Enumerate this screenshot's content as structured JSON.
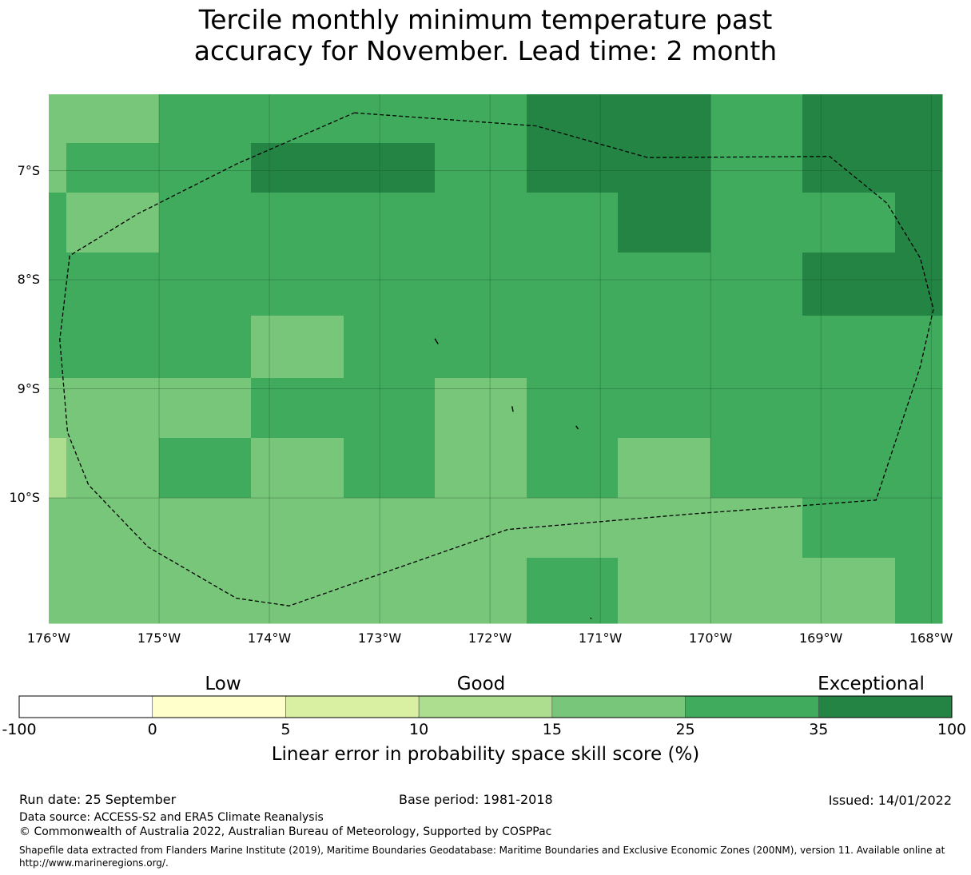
{
  "title_line1": "Tercile monthly minimum temperature past",
  "title_line2": "accuracy for November. Lead time: 2 month",
  "colors": {
    "c15_25": "#78c679",
    "c25_35": "#41ab5d",
    "c35_100": "#238443",
    "c10_15": "#addd8e"
  },
  "map": {
    "lon_range": [
      -176.0,
      -167.9
    ],
    "lat_range": [
      -11.15,
      -6.3
    ],
    "cells": [
      {
        "x0": -176.0,
        "x1": -175.0,
        "y0": -6.3,
        "y1": -6.75,
        "c": "c15_25"
      },
      {
        "x0": -175.0,
        "x1": -174.0,
        "y0": -6.3,
        "y1": -6.75,
        "c": "c25_35"
      },
      {
        "x0": -174.0,
        "x1": -172.0,
        "y0": -6.3,
        "y1": -6.75,
        "c": "c25_35"
      },
      {
        "x0": -172.0,
        "x1": -171.67,
        "y0": -6.3,
        "y1": -6.75,
        "c": "c25_35"
      },
      {
        "x0": -171.67,
        "x1": -170.0,
        "y0": -6.3,
        "y1": -6.75,
        "c": "c35_100"
      },
      {
        "x0": -170.0,
        "x1": -169.17,
        "y0": -6.3,
        "y1": -6.75,
        "c": "c25_35"
      },
      {
        "x0": -169.17,
        "x1": -167.9,
        "y0": -6.3,
        "y1": -6.75,
        "c": "c35_100"
      },
      {
        "x0": -176.0,
        "x1": -175.84,
        "y0": -6.75,
        "y1": -7.2,
        "c": "c15_25"
      },
      {
        "x0": -175.84,
        "x1": -174.17,
        "y0": -6.75,
        "y1": -7.2,
        "c": "c25_35"
      },
      {
        "x0": -174.17,
        "x1": -172.5,
        "y0": -6.75,
        "y1": -7.2,
        "c": "c35_100"
      },
      {
        "x0": -172.5,
        "x1": -171.67,
        "y0": -6.75,
        "y1": -7.2,
        "c": "c25_35"
      },
      {
        "x0": -171.67,
        "x1": -170.0,
        "y0": -6.75,
        "y1": -7.2,
        "c": "c35_100"
      },
      {
        "x0": -170.0,
        "x1": -169.17,
        "y0": -6.75,
        "y1": -7.2,
        "c": "c25_35"
      },
      {
        "x0": -169.17,
        "x1": -167.9,
        "y0": -6.75,
        "y1": -7.2,
        "c": "c35_100"
      },
      {
        "x0": -176.0,
        "x1": -175.84,
        "y0": -7.2,
        "y1": -7.75,
        "c": "c25_35"
      },
      {
        "x0": -175.84,
        "x1": -175.0,
        "y0": -7.2,
        "y1": -7.75,
        "c": "c15_25"
      },
      {
        "x0": -175.0,
        "x1": -170.84,
        "y0": -7.2,
        "y1": -7.75,
        "c": "c25_35"
      },
      {
        "x0": -170.84,
        "x1": -170.0,
        "y0": -7.2,
        "y1": -7.75,
        "c": "c35_100"
      },
      {
        "x0": -170.0,
        "x1": -168.33,
        "y0": -7.2,
        "y1": -7.75,
        "c": "c25_35"
      },
      {
        "x0": -168.33,
        "x1": -167.9,
        "y0": -7.2,
        "y1": -7.75,
        "c": "c35_100"
      },
      {
        "x0": -176.0,
        "x1": -169.17,
        "y0": -7.75,
        "y1": -8.33,
        "c": "c25_35"
      },
      {
        "x0": -169.17,
        "x1": -167.9,
        "y0": -7.75,
        "y1": -8.33,
        "c": "c35_100"
      },
      {
        "x0": -176.0,
        "x1": -174.17,
        "y0": -8.33,
        "y1": -8.9,
        "c": "c25_35"
      },
      {
        "x0": -174.17,
        "x1": -173.33,
        "y0": -8.33,
        "y1": -8.9,
        "c": "c15_25"
      },
      {
        "x0": -173.33,
        "x1": -167.9,
        "y0": -8.33,
        "y1": -8.9,
        "c": "c25_35"
      },
      {
        "x0": -176.0,
        "x1": -174.17,
        "y0": -8.9,
        "y1": -9.45,
        "c": "c15_25"
      },
      {
        "x0": -174.17,
        "x1": -172.5,
        "y0": -8.9,
        "y1": -9.45,
        "c": "c25_35"
      },
      {
        "x0": -172.5,
        "x1": -171.67,
        "y0": -8.9,
        "y1": -9.45,
        "c": "c15_25"
      },
      {
        "x0": -171.67,
        "x1": -167.9,
        "y0": -8.9,
        "y1": -9.45,
        "c": "c25_35"
      },
      {
        "x0": -176.0,
        "x1": -175.84,
        "y0": -9.45,
        "y1": -10.0,
        "c": "c10_15"
      },
      {
        "x0": -175.84,
        "x1": -175.0,
        "y0": -9.45,
        "y1": -10.0,
        "c": "c15_25"
      },
      {
        "x0": -175.0,
        "x1": -174.17,
        "y0": -9.45,
        "y1": -10.0,
        "c": "c25_35"
      },
      {
        "x0": -174.17,
        "x1": -173.33,
        "y0": -9.45,
        "y1": -10.0,
        "c": "c15_25"
      },
      {
        "x0": -173.33,
        "x1": -172.5,
        "y0": -9.45,
        "y1": -10.0,
        "c": "c25_35"
      },
      {
        "x0": -172.5,
        "x1": -171.67,
        "y0": -9.45,
        "y1": -10.0,
        "c": "c15_25"
      },
      {
        "x0": -171.67,
        "x1": -170.84,
        "y0": -9.45,
        "y1": -10.0,
        "c": "c25_35"
      },
      {
        "x0": -170.84,
        "x1": -170.0,
        "y0": -9.45,
        "y1": -10.0,
        "c": "c15_25"
      },
      {
        "x0": -170.0,
        "x1": -167.9,
        "y0": -9.45,
        "y1": -10.0,
        "c": "c25_35"
      },
      {
        "x0": -176.0,
        "x1": -169.17,
        "y0": -10.0,
        "y1": -10.55,
        "c": "c15_25"
      },
      {
        "x0": -169.17,
        "x1": -167.9,
        "y0": -10.0,
        "y1": -10.55,
        "c": "c25_35"
      },
      {
        "x0": -176.0,
        "x1": -171.67,
        "y0": -10.55,
        "y1": -11.15,
        "c": "c15_25"
      },
      {
        "x0": -171.67,
        "x1": -170.84,
        "y0": -10.55,
        "y1": -11.15,
        "c": "c25_35"
      },
      {
        "x0": -170.84,
        "x1": -168.33,
        "y0": -10.55,
        "y1": -11.15,
        "c": "c15_25"
      },
      {
        "x0": -168.33,
        "x1": -167.9,
        "y0": -10.55,
        "y1": -11.15,
        "c": "c25_35"
      }
    ],
    "eez_boundary": [
      [
        -173.23,
        -6.47
      ],
      [
        -171.58,
        -6.59
      ],
      [
        -170.57,
        -6.88
      ],
      [
        -168.92,
        -6.87
      ],
      [
        -168.4,
        -7.3
      ],
      [
        -168.1,
        -7.8
      ],
      [
        -167.98,
        -8.27
      ],
      [
        -168.1,
        -8.8
      ],
      [
        -168.5,
        -10.02
      ],
      [
        -170.2,
        -10.15
      ],
      [
        -171.84,
        -10.29
      ],
      [
        -173.82,
        -10.99
      ],
      [
        -174.3,
        -10.92
      ],
      [
        -175.1,
        -10.45
      ],
      [
        -175.64,
        -9.88
      ],
      [
        -175.83,
        -9.4
      ],
      [
        -175.9,
        -8.55
      ],
      [
        -175.81,
        -7.78
      ],
      [
        -175.2,
        -7.4
      ],
      [
        -174.3,
        -6.94
      ],
      [
        -173.23,
        -6.47
      ]
    ],
    "islands": [
      [
        [
          -172.5,
          -8.54
        ],
        [
          -172.47,
          -8.59
        ]
      ],
      [
        [
          -171.8,
          -9.16
        ],
        [
          -171.79,
          -9.21
        ]
      ],
      [
        [
          -171.22,
          -9.34
        ],
        [
          -171.2,
          -9.37
        ]
      ],
      [
        [
          -171.09,
          -11.1
        ],
        [
          -171.08,
          -11.11
        ]
      ]
    ],
    "lat_ticks": [
      {
        "v": -7,
        "label": "7°S"
      },
      {
        "v": -8,
        "label": "8°S"
      },
      {
        "v": -9,
        "label": "9°S"
      },
      {
        "v": -10,
        "label": "10°S"
      }
    ],
    "lon_ticks": [
      {
        "v": -176,
        "label": "176°W"
      },
      {
        "v": -175,
        "label": "175°W"
      },
      {
        "v": -174,
        "label": "174°W"
      },
      {
        "v": -173,
        "label": "173°W"
      },
      {
        "v": -172,
        "label": "172°W"
      },
      {
        "v": -171,
        "label": "171°W"
      },
      {
        "v": -170,
        "label": "170°W"
      },
      {
        "v": -169,
        "label": "169°W"
      },
      {
        "v": -168,
        "label": "168°W"
      }
    ]
  },
  "colorbar": {
    "categories": [
      "Low",
      "Good",
      "Exceptional"
    ],
    "bins": [
      {
        "from": "-100",
        "to": "0",
        "color": "#ffffff"
      },
      {
        "from": "0",
        "to": "5",
        "color": "#ffffcc"
      },
      {
        "from": "5",
        "to": "10",
        "color": "#d9f0a3"
      },
      {
        "from": "10",
        "to": "15",
        "color": "#addd8e"
      },
      {
        "from": "15",
        "to": "25",
        "color": "#78c679"
      },
      {
        "from": "25",
        "to": "35",
        "color": "#41ab5d"
      },
      {
        "from": "35",
        "to": "100",
        "color": "#238443"
      }
    ],
    "ticks": [
      "-100",
      "0",
      "5",
      "10",
      "15",
      "25",
      "35",
      "100"
    ],
    "label": "Linear error in probability space skill score (%)"
  },
  "footer": {
    "run_date": "Run date: 25 September",
    "base_period": "Base period: 1981-2018",
    "issued": "Issued: 14/01/2022",
    "data_source": "Data source: ACCESS-S2 and ERA5 Climate Reanalysis",
    "copyright": "© Commonwealth of Australia 2022, Australian Bureau of Meteorology, Supported by COSPPac",
    "shapefile": "Shapefile data extracted from Flanders Marine Institute (2019), Maritime Boundaries Geodatabase: Maritime Boundaries and Exclusive Economic Zones (200NM), version 11. Available online at http://www.marineregions.org/."
  }
}
